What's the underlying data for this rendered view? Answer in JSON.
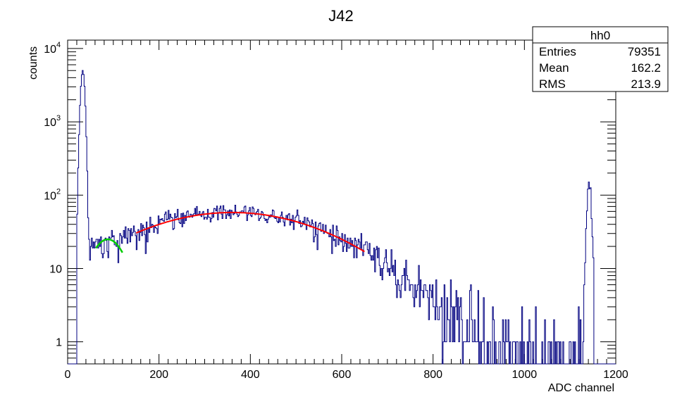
{
  "chart_data": {
    "type": "histogram",
    "title": "J42",
    "xlabel": "ADC channel",
    "ylabel": "counts",
    "xlim": [
      0,
      1200
    ],
    "ylim": [
      0.5,
      13000
    ],
    "yscale": "log",
    "bin_width": 2,
    "x_ticks": [
      "0",
      "200",
      "400",
      "600",
      "800",
      "1000",
      "1200"
    ],
    "y_ticks": [
      {
        "value": 1,
        "label": "1"
      },
      {
        "value": 10,
        "label": "10"
      },
      {
        "value": 100,
        "label": "10",
        "exp": "2"
      },
      {
        "value": 1000,
        "label": "10",
        "exp": "3"
      },
      {
        "value": 10000,
        "label": "10",
        "exp": "4"
      }
    ],
    "colors": {
      "histogram": "#000080",
      "fit_main": "#ff0000",
      "fit_low": "#00cc00"
    },
    "stats": {
      "name": "hh0",
      "rows": [
        {
          "label": "Entries",
          "value": "79351"
        },
        {
          "label": "Mean",
          "value": "162.2"
        },
        {
          "label": "RMS",
          "value": "213.9"
        }
      ]
    },
    "features": {
      "low_peak": {
        "center": 33,
        "width": 4,
        "height": 5000
      },
      "fit_main": {
        "amplitude": 58,
        "mean": 360,
        "sigma": 185,
        "x_range": [
          150,
          650
        ]
      },
      "fit_low": {
        "amplitude": 25,
        "mean": 88,
        "sigma": 35,
        "x_range": [
          62,
          120
        ]
      },
      "high_peak": {
        "center": 1142,
        "width": 4,
        "height": 150
      }
    }
  }
}
